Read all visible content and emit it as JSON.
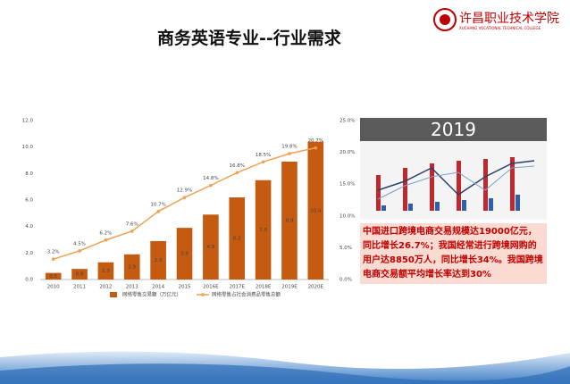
{
  "header": {
    "title": "商务英语专业--行业需求",
    "logo_name": "许昌职业技术学院",
    "logo_english": "XUCHANG VOCATIONAL TECHNICAL COLLEGE"
  },
  "chart_data": {
    "type": "bar",
    "categories": [
      "2010",
      "2011",
      "2012",
      "2013",
      "2014",
      "2015",
      "2016E",
      "2017E",
      "2018E",
      "2019E",
      "2020E"
    ],
    "series": [
      {
        "name": "网络零售交易额（万亿元）",
        "type": "bar",
        "color": "#c55a11",
        "values": [
          0.5,
          0.8,
          1.3,
          1.9,
          2.9,
          3.9,
          4.9,
          6.2,
          7.5,
          8.9,
          10.4
        ]
      },
      {
        "name": "网络零售占社会消费品零售总额",
        "type": "line",
        "axis": "y2",
        "color": "#f0a050",
        "values": [
          3.2,
          4.5,
          6.2,
          7.6,
          10.7,
          12.9,
          14.8,
          16.8,
          18.5,
          19.8,
          20.7
        ],
        "value_labels": [
          "3.2%",
          "4.5%",
          "6.2%",
          "7.6%",
          "10.7%",
          "12.9%",
          "14.8%",
          "16.8%",
          "18.5%",
          "19.8%",
          "20.7%"
        ]
      }
    ],
    "ylim": [
      0,
      12
    ],
    "yticks": [
      {
        "value": 0,
        "label": "0.0"
      },
      {
        "value": 2,
        "label": "2.0"
      },
      {
        "value": 4,
        "label": "4.0"
      },
      {
        "value": 6,
        "label": "6.0"
      },
      {
        "value": 8,
        "label": "8.0"
      },
      {
        "value": 10,
        "label": "10.0"
      },
      {
        "value": 12,
        "label": "12.0"
      }
    ],
    "y2lim": [
      0,
      25
    ],
    "y2ticks": [
      {
        "value": 0,
        "label": "0.0%"
      },
      {
        "value": 5,
        "label": "5.0%"
      },
      {
        "value": 10,
        "label": "10.0%"
      },
      {
        "value": 15,
        "label": "15.0%"
      },
      {
        "value": 20,
        "label": "20.0%"
      },
      {
        "value": 25,
        "label": "25.0%"
      }
    ],
    "grid": false
  },
  "panel": {
    "year": "2019",
    "text": "中国进口跨境电商交易规模达19000亿元，同比增长26.7%；我国经常进行跨境网购的用户达8850万人，同比增长34%。我国跨境电商交易额平均增长率达到30%"
  }
}
